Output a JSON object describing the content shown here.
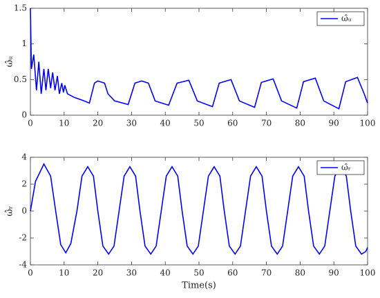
{
  "chart_data": [
    {
      "type": "line",
      "ylabel": "ω̂ᵤ",
      "legend": "upper right",
      "grid": false,
      "xlim": [
        0,
        100
      ],
      "xticks": [
        0,
        10,
        20,
        30,
        40,
        50,
        60,
        70,
        80,
        90,
        100
      ],
      "ylim": [
        0,
        1.5
      ],
      "yticks": [
        0,
        0.5,
        1,
        1.5
      ],
      "x": [
        0,
        0.3,
        1,
        1.8,
        2.5,
        3.2,
        4,
        4.6,
        5.3,
        6,
        6.6,
        7.3,
        8,
        8.6,
        9.3,
        9.8,
        10.2,
        11,
        13,
        16,
        17.5,
        19,
        20,
        22,
        23,
        25,
        29,
        31,
        33,
        35,
        37,
        41,
        43.5,
        47,
        49.5,
        54,
        56,
        59.5,
        62,
        66.5,
        68.5,
        72,
        74.5,
        79,
        81,
        84.5,
        87,
        91.5,
        93.5,
        97,
        99,
        100
      ],
      "series": [
        {
          "name": "ω̂ᵤ",
          "color": "#0000ff",
          "values": [
            1.5,
            0.65,
            0.85,
            0.35,
            0.75,
            0.3,
            0.65,
            0.35,
            0.65,
            0.38,
            0.6,
            0.35,
            0.55,
            0.3,
            0.45,
            0.32,
            0.42,
            0.3,
            0.25,
            0.2,
            0.17,
            0.45,
            0.48,
            0.45,
            0.3,
            0.2,
            0.15,
            0.45,
            0.48,
            0.45,
            0.2,
            0.14,
            0.45,
            0.49,
            0.2,
            0.12,
            0.45,
            0.5,
            0.2,
            0.11,
            0.46,
            0.51,
            0.2,
            0.1,
            0.47,
            0.52,
            0.2,
            0.09,
            0.47,
            0.53,
            0.3,
            0.17
          ]
        }
      ]
    },
    {
      "type": "line",
      "ylabel": "ω̂ᵣ",
      "xlabel": "Time(s)",
      "legend": "upper right",
      "grid": false,
      "xlim": [
        0,
        100
      ],
      "xticks": [
        0,
        10,
        20,
        30,
        40,
        50,
        60,
        70,
        80,
        90,
        100
      ],
      "ylim": [
        -4,
        4
      ],
      "yticks": [
        -4,
        -2,
        0,
        2,
        4
      ],
      "x": [
        0,
        1.5,
        4,
        6,
        7.5,
        9,
        10.5,
        12,
        13.8,
        15.3,
        17,
        18.7,
        20,
        21.5,
        23.2,
        24.8,
        26.3,
        27.8,
        29.5,
        31.2,
        32.5,
        34,
        35.7,
        37.3,
        38.8,
        40.3,
        42,
        43.7,
        45,
        46.5,
        48.2,
        49.8,
        51.3,
        52.8,
        54.5,
        56.2,
        57.5,
        59,
        60.7,
        62.3,
        63.8,
        65.3,
        67,
        68.7,
        70,
        71.5,
        73.2,
        74.8,
        76.3,
        77.8,
        79.5,
        81.2,
        82.5,
        84,
        85.7,
        87.3,
        88.8,
        90.3,
        92,
        93.7,
        95,
        96.5,
        98.2,
        99.5,
        100
      ],
      "series": [
        {
          "name": "ω̂ᵣ",
          "color": "#0000ff",
          "values": [
            0,
            2.2,
            3.5,
            2.6,
            0,
            -2.5,
            -3.1,
            -2.4,
            0,
            2.6,
            3.3,
            2.6,
            0,
            -2.6,
            -3.2,
            -2.6,
            0,
            2.6,
            3.3,
            2.6,
            0,
            -2.6,
            -3.2,
            -2.6,
            0,
            2.6,
            3.3,
            2.6,
            0,
            -2.6,
            -3.2,
            -2.6,
            0,
            2.6,
            3.3,
            2.6,
            0,
            -2.6,
            -3.2,
            -2.6,
            0,
            2.6,
            3.3,
            2.6,
            0,
            -2.6,
            -3.2,
            -2.6,
            0,
            2.6,
            3.3,
            2.6,
            0,
            -2.6,
            -3.2,
            -2.6,
            0,
            2.6,
            3.3,
            2.6,
            0,
            -2.6,
            -3.2,
            -3.0,
            -2.7
          ]
        }
      ]
    }
  ]
}
